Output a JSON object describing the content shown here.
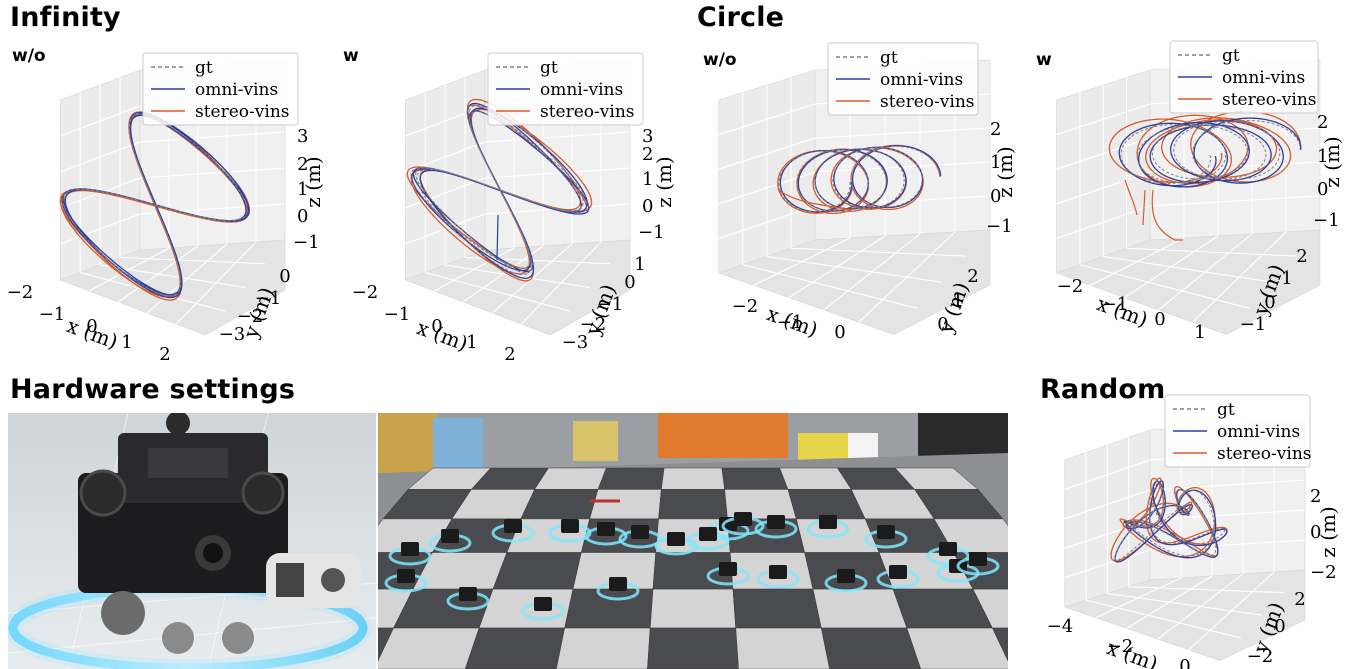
{
  "titles": {
    "infinity": "Infinity",
    "circle": "Circle",
    "hardware": "Hardware settings",
    "random": "Random"
  },
  "colors": {
    "gt": "#808080",
    "omni": "#2c3f9e",
    "stereo": "#d95b2a",
    "pane": "#ebebeb",
    "grid": "#ffffff"
  },
  "photos": {
    "drone": "drone-photo",
    "arena": "swarm-arena-photo"
  },
  "chart_data": [
    {
      "type": "line",
      "group": "Infinity",
      "label": "w/o",
      "legend": [
        "gt",
        "omni-vins",
        "stereo-vins"
      ],
      "xlabel": "x (m)",
      "ylabel": "y (m)",
      "zlabel": "z (m)",
      "xticks": [
        "−2",
        "−1",
        "0",
        "1",
        "2"
      ],
      "yticks": [
        "0",
        "−1",
        "−2",
        "−3"
      ],
      "zticks": [
        "3",
        "2",
        "1",
        "0",
        "−1"
      ],
      "trajectory": "figure-eight"
    },
    {
      "type": "line",
      "group": "Infinity",
      "label": "w",
      "legend": [
        "gt",
        "omni-vins",
        "stereo-vins"
      ],
      "xlabel": "x (m)",
      "ylabel": "y (m)",
      "zlabel": "z (m)",
      "xticks": [
        "−2",
        "−1",
        "0",
        "1",
        "2"
      ],
      "yticks": [
        "1",
        "0",
        "−1",
        "−2",
        "−3"
      ],
      "zticks": [
        "3",
        "2",
        "1",
        "0",
        "−1"
      ],
      "trajectory": "figure-eight"
    },
    {
      "type": "line",
      "group": "Circle",
      "label": "w/o",
      "legend": [
        "gt",
        "omni-vins",
        "stereo-vins"
      ],
      "xlabel": "x (m)",
      "ylabel": "y (m)",
      "zlabel": "z (m)",
      "xticks": [
        "−2",
        "−1",
        "0"
      ],
      "yticks": [
        "2",
        "1",
        "0"
      ],
      "zticks": [
        "2",
        "1",
        "0",
        "−1"
      ],
      "trajectory": "circles"
    },
    {
      "type": "line",
      "group": "Circle",
      "label": "w",
      "legend": [
        "gt",
        "omni-vins",
        "stereo-vins"
      ],
      "xlabel": "x (m)",
      "ylabel": "y (m)",
      "zlabel": "z (m)",
      "xticks": [
        "−2",
        "−1",
        "0",
        "1"
      ],
      "yticks": [
        "2",
        "1",
        "0",
        "−1"
      ],
      "zticks": [
        "2",
        "1",
        "0",
        "−1"
      ],
      "trajectory": "circles"
    },
    {
      "type": "line",
      "group": "Random",
      "label": "",
      "legend": [
        "gt",
        "omni-vins",
        "stereo-vins"
      ],
      "xlabel": "x (m)",
      "ylabel": "y (m)",
      "zlabel": "z (m)",
      "xticks": [
        "−4",
        "−2",
        "0"
      ],
      "yticks": [
        "2",
        "0",
        "−2"
      ],
      "zticks": [
        "2",
        "0",
        "−2"
      ],
      "trajectory": "random"
    }
  ]
}
